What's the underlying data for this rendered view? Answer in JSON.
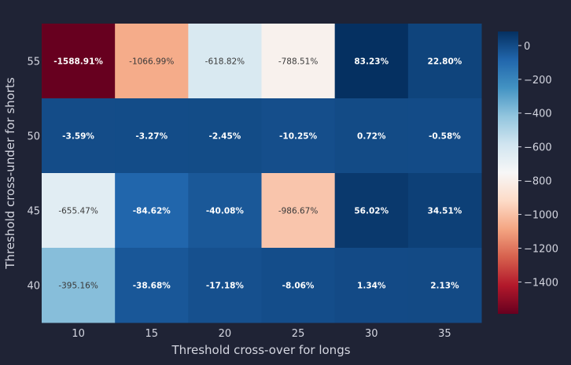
{
  "chart_data": {
    "type": "heatmap",
    "title": "",
    "xlabel": "Threshold cross-over for longs",
    "ylabel": "Threshold cross-under for shorts",
    "x_categories": [
      "10",
      "15",
      "20",
      "25",
      "30",
      "35"
    ],
    "y_categories": [
      "55",
      "50",
      "45",
      "40"
    ],
    "values": [
      [
        -1588.91,
        -1066.99,
        -618.82,
        -788.51,
        83.23,
        22.8
      ],
      [
        -3.59,
        -3.27,
        -2.45,
        -10.25,
        0.72,
        -0.58
      ],
      [
        -655.47,
        -84.62,
        -40.08,
        -986.67,
        56.02,
        34.51
      ],
      [
        -395.16,
        -38.68,
        -17.18,
        -8.06,
        1.34,
        2.13
      ]
    ],
    "labels": [
      [
        "-1588.91%",
        "-1066.99%",
        "-618.82%",
        "-788.51%",
        "83.23%",
        "22.80%"
      ],
      [
        "-3.59%",
        "-3.27%",
        "-2.45%",
        "-10.25%",
        "0.72%",
        "-0.58%"
      ],
      [
        "-655.47%",
        "-84.62%",
        "-40.08%",
        "-986.67%",
        "56.02%",
        "34.51%"
      ],
      [
        "-395.16%",
        "-38.68%",
        "-17.18%",
        "-8.06%",
        "1.34%",
        "2.13%"
      ]
    ],
    "colorscale": "RdBu",
    "zmin": -1588.91,
    "zmax": 83.23,
    "colorbar_ticks": [
      0,
      -200,
      -400,
      -600,
      -800,
      -1000,
      -1200,
      -1400
    ],
    "colorbar_tick_labels": [
      "0",
      "−200",
      "−400",
      "−600",
      "−800",
      "−1000",
      "−1200",
      "−1400"
    ],
    "background_color": "#1f2335",
    "text_color": "#d4d6e0"
  }
}
